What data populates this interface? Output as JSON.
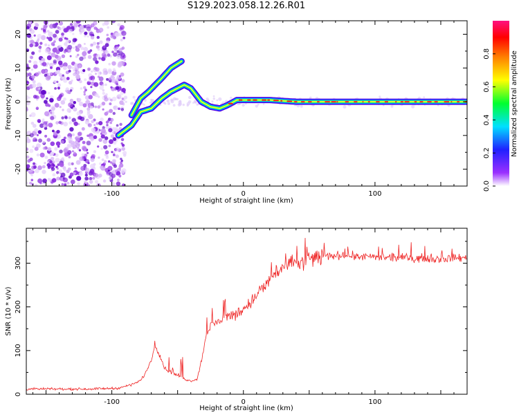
{
  "title": "S129.2023.058.12.26.R01",
  "colors": {
    "snr_line": "#ee2222",
    "axis": "#000000"
  },
  "chart_data": [
    {
      "type": "heatmap",
      "xlabel": "Height of straight line (km)",
      "ylabel": "Frequency (Hz)",
      "xlim": [
        -165,
        170
      ],
      "ylim": [
        -25,
        24
      ],
      "xticks": [
        -100,
        0,
        100
      ],
      "yticks": [
        -20,
        -10,
        0,
        10,
        20
      ],
      "colorbar": {
        "label": "Normalized spectral amplitude",
        "range": [
          0,
          1
        ],
        "ticks": [
          0.0,
          0.2,
          0.4,
          0.6,
          0.8
        ],
        "colormap": [
          "#ffffff",
          "#9b30ff",
          "#2020ff",
          "#00e0ff",
          "#00ff30",
          "#ffff00",
          "#ff8000",
          "#ff0000",
          "#ff1080"
        ]
      },
      "ridge": [
        {
          "x": -95,
          "y": -10
        },
        {
          "x": -85,
          "y": -7
        },
        {
          "x": -78,
          "y": -3
        },
        {
          "x": -70,
          "y": -2
        },
        {
          "x": -62,
          "y": 1
        },
        {
          "x": -55,
          "y": 3
        },
        {
          "x": -45,
          "y": 5
        },
        {
          "x": -40,
          "y": 4
        },
        {
          "x": -32,
          "y": 0
        },
        {
          "x": -25,
          "y": -1.5
        },
        {
          "x": -18,
          "y": -2
        },
        {
          "x": -12,
          "y": -1
        },
        {
          "x": -5,
          "y": 0.5
        },
        {
          "x": 5,
          "y": 0.5
        },
        {
          "x": 20,
          "y": 0.5
        },
        {
          "x": 40,
          "y": 0
        },
        {
          "x": 80,
          "y": 0
        },
        {
          "x": 120,
          "y": 0
        },
        {
          "x": 170,
          "y": 0
        }
      ],
      "branch": [
        {
          "x": -85,
          "y": -4
        },
        {
          "x": -78,
          "y": 1
        },
        {
          "x": -72,
          "y": 3
        },
        {
          "x": -62,
          "y": 7
        },
        {
          "x": -55,
          "y": 10
        },
        {
          "x": -47,
          "y": 12
        }
      ]
    },
    {
      "type": "line",
      "xlabel": "Height of straight line (km)",
      "ylabel": "SNR (10 * v/v)",
      "xlim": [
        -165,
        170
      ],
      "ylim": [
        0,
        380
      ],
      "xticks": [
        -100,
        0,
        100
      ],
      "yticks": [
        0,
        100,
        200,
        300
      ],
      "series": [
        {
          "x": [
            -165,
            -120,
            -95,
            -85,
            -78,
            -74,
            -70,
            -67,
            -64,
            -60,
            -55,
            -50,
            -45,
            -40,
            -35,
            -31,
            -28,
            -25,
            -20,
            -15,
            -10,
            -5,
            0,
            5,
            10,
            15,
            20,
            25,
            30,
            35,
            40,
            45,
            50,
            60,
            70,
            80,
            90,
            100,
            120,
            140,
            150,
            160,
            170
          ],
          "values": [
            12,
            12,
            14,
            22,
            32,
            50,
            80,
            110,
            95,
            60,
            50,
            42,
            35,
            30,
            35,
            90,
            140,
            155,
            165,
            175,
            180,
            185,
            195,
            210,
            225,
            240,
            265,
            280,
            290,
            295,
            300,
            305,
            310,
            315,
            318,
            318,
            315,
            313,
            312,
            311,
            310,
            312,
            313
          ]
        }
      ]
    }
  ]
}
